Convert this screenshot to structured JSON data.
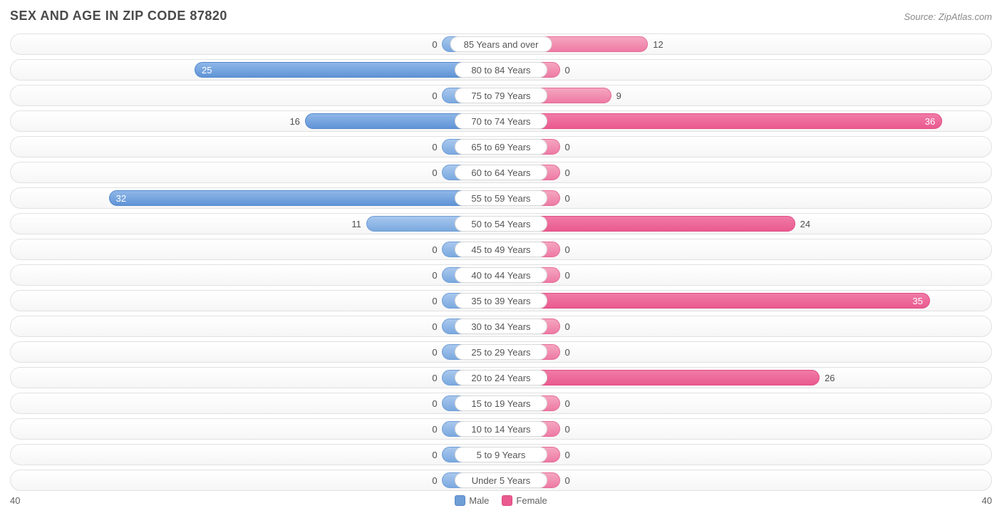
{
  "title": "SEX AND AGE IN ZIP CODE 87820",
  "source": "Source: ZipAtlas.com",
  "axis_max": 40,
  "axis_left_label": "40",
  "axis_right_label": "40",
  "legend": {
    "male": "Male",
    "female": "Female"
  },
  "colors": {
    "male_bar": "#7ba9df",
    "male_bar_strong": "#5f94d6",
    "female_bar": "#ee7aa4",
    "female_bar_strong": "#ea5a8f",
    "row_border": "#e1e1e1",
    "label_pill_border": "#d9d9d9",
    "text": "#4f4f4f"
  },
  "min_bar_percent": 12,
  "rows": [
    {
      "label": "85 Years and over",
      "male": 0,
      "female": 12,
      "m_strong": false,
      "f_strong": false
    },
    {
      "label": "80 to 84 Years",
      "male": 25,
      "female": 0,
      "m_strong": true,
      "f_strong": false
    },
    {
      "label": "75 to 79 Years",
      "male": 0,
      "female": 9,
      "m_strong": false,
      "f_strong": false
    },
    {
      "label": "70 to 74 Years",
      "male": 16,
      "female": 36,
      "m_strong": true,
      "f_strong": true
    },
    {
      "label": "65 to 69 Years",
      "male": 0,
      "female": 0,
      "m_strong": false,
      "f_strong": false
    },
    {
      "label": "60 to 64 Years",
      "male": 0,
      "female": 0,
      "m_strong": false,
      "f_strong": false
    },
    {
      "label": "55 to 59 Years",
      "male": 32,
      "female": 0,
      "m_strong": true,
      "f_strong": false
    },
    {
      "label": "50 to 54 Years",
      "male": 11,
      "female": 24,
      "m_strong": false,
      "f_strong": true
    },
    {
      "label": "45 to 49 Years",
      "male": 0,
      "female": 0,
      "m_strong": false,
      "f_strong": false
    },
    {
      "label": "40 to 44 Years",
      "male": 0,
      "female": 0,
      "m_strong": false,
      "f_strong": false
    },
    {
      "label": "35 to 39 Years",
      "male": 0,
      "female": 35,
      "m_strong": false,
      "f_strong": true
    },
    {
      "label": "30 to 34 Years",
      "male": 0,
      "female": 0,
      "m_strong": false,
      "f_strong": false
    },
    {
      "label": "25 to 29 Years",
      "male": 0,
      "female": 0,
      "m_strong": false,
      "f_strong": false
    },
    {
      "label": "20 to 24 Years",
      "male": 0,
      "female": 26,
      "m_strong": false,
      "f_strong": true
    },
    {
      "label": "15 to 19 Years",
      "male": 0,
      "female": 0,
      "m_strong": false,
      "f_strong": false
    },
    {
      "label": "10 to 14 Years",
      "male": 0,
      "female": 0,
      "m_strong": false,
      "f_strong": false
    },
    {
      "label": "5 to 9 Years",
      "male": 0,
      "female": 0,
      "m_strong": false,
      "f_strong": false
    },
    {
      "label": "Under 5 Years",
      "male": 0,
      "female": 0,
      "m_strong": false,
      "f_strong": false
    }
  ]
}
